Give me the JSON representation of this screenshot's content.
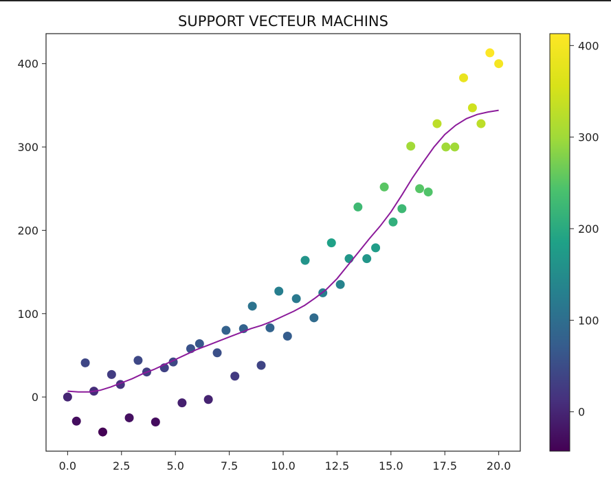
{
  "chart_data": {
    "type": "scatter",
    "title": "SUPPORT VECTEUR MACHINS",
    "xlabel": "",
    "ylabel": "",
    "xlim": [
      -1,
      21
    ],
    "ylim": [
      -65,
      436
    ],
    "xticks": [
      0.0,
      2.5,
      5.0,
      7.5,
      10.0,
      12.5,
      15.0,
      17.5,
      20.0
    ],
    "xtick_labels": [
      "0.0",
      "2.5",
      "5.0",
      "7.5",
      "10.0",
      "12.5",
      "15.0",
      "17.5",
      "20.0"
    ],
    "yticks": [
      0,
      100,
      200,
      300,
      400
    ],
    "ytick_labels": [
      "0",
      "100",
      "200",
      "300",
      "400"
    ],
    "grid": false,
    "colormap": "viridis",
    "colorbar": {
      "range": [
        -43,
        413
      ],
      "ticks": [
        0,
        100,
        200,
        300,
        400
      ],
      "tick_labels": [
        "0",
        "100",
        "200",
        "300",
        "400"
      ]
    },
    "points": [
      [
        0.0,
        0
      ],
      [
        0.41,
        -29
      ],
      [
        0.82,
        41
      ],
      [
        1.22,
        7
      ],
      [
        1.63,
        -42
      ],
      [
        2.04,
        27
      ],
      [
        2.45,
        15
      ],
      [
        2.86,
        -25
      ],
      [
        3.27,
        44
      ],
      [
        3.67,
        30
      ],
      [
        4.08,
        -30
      ],
      [
        4.49,
        35
      ],
      [
        4.9,
        42
      ],
      [
        5.31,
        -7
      ],
      [
        5.71,
        58
      ],
      [
        6.12,
        64
      ],
      [
        6.53,
        -3
      ],
      [
        6.94,
        53
      ],
      [
        7.35,
        80
      ],
      [
        7.76,
        25
      ],
      [
        8.16,
        82
      ],
      [
        8.57,
        109
      ],
      [
        8.98,
        38
      ],
      [
        9.39,
        83
      ],
      [
        9.8,
        127
      ],
      [
        10.2,
        73
      ],
      [
        10.61,
        118
      ],
      [
        11.02,
        164
      ],
      [
        11.43,
        95
      ],
      [
        11.84,
        125
      ],
      [
        12.24,
        185
      ],
      [
        12.65,
        135
      ],
      [
        13.06,
        166
      ],
      [
        13.47,
        228
      ],
      [
        13.88,
        166
      ],
      [
        14.29,
        179
      ],
      [
        14.69,
        252
      ],
      [
        15.1,
        210
      ],
      [
        15.51,
        226
      ],
      [
        15.92,
        301
      ],
      [
        16.33,
        250
      ],
      [
        16.73,
        246
      ],
      [
        17.14,
        328
      ],
      [
        17.55,
        300
      ],
      [
        17.96,
        300
      ],
      [
        18.37,
        383
      ],
      [
        18.78,
        347
      ],
      [
        19.18,
        328
      ],
      [
        19.59,
        413
      ],
      [
        20.0,
        400
      ]
    ],
    "curve": {
      "color": "#8b1a9a",
      "x": [
        0,
        0.5,
        1,
        1.5,
        2,
        2.5,
        3,
        3.5,
        4,
        4.5,
        5,
        5.5,
        6,
        6.5,
        7,
        7.5,
        8,
        8.5,
        9,
        9.5,
        10,
        10.5,
        11,
        11.5,
        12,
        12.5,
        13,
        13.5,
        14,
        14.5,
        15,
        15.5,
        16,
        16.5,
        17,
        17.5,
        18,
        18.5,
        19,
        19.5,
        20
      ],
      "y": [
        7,
        6,
        6,
        8,
        12,
        17,
        22,
        28,
        33,
        39,
        45,
        51,
        57,
        62,
        67,
        72,
        77,
        82,
        86,
        91,
        97,
        103,
        110,
        119,
        129,
        142,
        158,
        174,
        190,
        205,
        222,
        242,
        263,
        282,
        300,
        315,
        326,
        334,
        339,
        342,
        344
      ]
    }
  }
}
